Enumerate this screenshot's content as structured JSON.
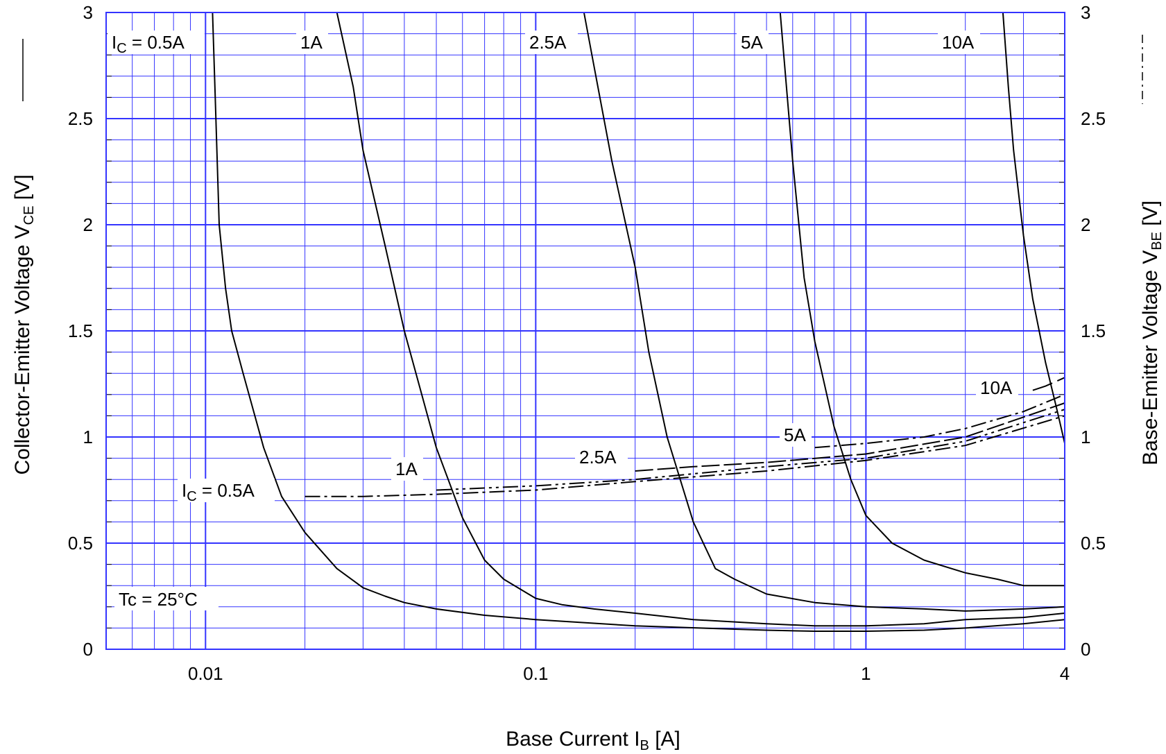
{
  "chart_data": {
    "type": "line",
    "x_scale": "log",
    "xlim": [
      0.005,
      4
    ],
    "ylim": [
      0,
      3
    ],
    "y2lim": [
      0,
      3
    ],
    "grid": true,
    "grid_color": "#3333ff",
    "x_ticks": [
      {
        "value": 0.01,
        "label": "0.01"
      },
      {
        "value": 0.1,
        "label": "0.1"
      },
      {
        "value": 1,
        "label": "1"
      },
      {
        "value": 4,
        "label": "4"
      }
    ],
    "y_ticks": [
      {
        "value": 0,
        "label": "0"
      },
      {
        "value": 0.5,
        "label": "0.5"
      },
      {
        "value": 1,
        "label": "1"
      },
      {
        "value": 1.5,
        "label": "1.5"
      },
      {
        "value": 2,
        "label": "2"
      },
      {
        "value": 2.5,
        "label": "2.5"
      },
      {
        "value": 3,
        "label": "3"
      }
    ],
    "y2_ticks": [
      {
        "value": 0,
        "label": "0"
      },
      {
        "value": 0.5,
        "label": "0.5"
      },
      {
        "value": 1,
        "label": "1"
      },
      {
        "value": 1.5,
        "label": "1.5"
      },
      {
        "value": 2,
        "label": "2"
      },
      {
        "value": 2.5,
        "label": "2.5"
      },
      {
        "value": 3,
        "label": "3"
      }
    ],
    "xlabel": {
      "main": "Base Current  I",
      "sub": "B",
      "unit": "  [A]"
    },
    "ylabel": {
      "main": "Collector-Emitter Voltage  V",
      "sub": "CE",
      "unit": " [V]"
    },
    "y2label": {
      "main": "Base-Emitter Voltage  V",
      "sub": "BE",
      "unit": " [V]"
    },
    "annotation": "Tc = 25°C",
    "vce_series": [
      {
        "label": "I",
        "label_sub": "C",
        "label_rest": " = 0.5A",
        "x": [
          0.0105,
          0.0107,
          0.011,
          0.0115,
          0.012,
          0.013,
          0.015,
          0.017,
          0.02,
          0.025,
          0.03,
          0.035,
          0.04,
          0.05,
          0.07,
          0.1,
          0.2,
          0.5,
          0.7,
          1,
          1.5,
          2,
          3,
          4
        ],
        "y": [
          3.0,
          2.6,
          2.0,
          1.7,
          1.5,
          1.3,
          0.95,
          0.72,
          0.55,
          0.38,
          0.29,
          0.25,
          0.22,
          0.19,
          0.16,
          0.14,
          0.11,
          0.09,
          0.085,
          0.085,
          0.09,
          0.1,
          0.12,
          0.14
        ]
      },
      {
        "label": "1A",
        "x": [
          0.025,
          0.028,
          0.03,
          0.035,
          0.04,
          0.05,
          0.06,
          0.07,
          0.08,
          0.1,
          0.12,
          0.15,
          0.2,
          0.3,
          0.5,
          0.7,
          1,
          1.5,
          2,
          3,
          4
        ],
        "y": [
          3.0,
          2.65,
          2.35,
          1.9,
          1.5,
          0.95,
          0.62,
          0.42,
          0.33,
          0.24,
          0.21,
          0.19,
          0.17,
          0.14,
          0.12,
          0.11,
          0.11,
          0.12,
          0.14,
          0.15,
          0.17
        ]
      },
      {
        "label": "2.5A",
        "x": [
          0.14,
          0.15,
          0.17,
          0.2,
          0.22,
          0.25,
          0.3,
          0.35,
          0.4,
          0.5,
          0.7,
          1,
          1.5,
          2,
          3,
          4
        ],
        "y": [
          3.0,
          2.75,
          2.3,
          1.8,
          1.4,
          1.0,
          0.6,
          0.38,
          0.33,
          0.26,
          0.22,
          0.2,
          0.19,
          0.18,
          0.19,
          0.2
        ]
      },
      {
        "label": "5A",
        "x": [
          0.55,
          0.6,
          0.65,
          0.7,
          0.8,
          0.9,
          1,
          1.2,
          1.5,
          2,
          2.5,
          3,
          4
        ],
        "y": [
          3.0,
          2.3,
          1.75,
          1.45,
          1.05,
          0.8,
          0.63,
          0.5,
          0.42,
          0.36,
          0.33,
          0.3,
          0.3
        ]
      },
      {
        "label": "10A",
        "x": [
          2.6,
          2.7,
          2.8,
          3,
          3.2,
          3.5,
          3.8,
          4
        ],
        "y": [
          3.0,
          2.65,
          2.35,
          1.95,
          1.65,
          1.35,
          1.12,
          0.97
        ]
      }
    ],
    "vbe_series": [
      {
        "label": "I",
        "label_sub": "C",
        "label_rest": " = 0.5A",
        "dash": "22,6,4,6",
        "x": [
          0.02,
          0.03,
          0.05,
          0.1,
          0.2,
          0.5,
          1,
          2,
          4
        ],
        "y": [
          0.72,
          0.72,
          0.73,
          0.75,
          0.79,
          0.84,
          0.89,
          0.96,
          1.1
        ]
      },
      {
        "label": "1A",
        "dash": "22,6,4,6,4,6",
        "x": [
          0.05,
          0.1,
          0.2,
          0.5,
          1,
          2,
          4
        ],
        "y": [
          0.75,
          0.77,
          0.8,
          0.86,
          0.9,
          0.98,
          1.13
        ]
      },
      {
        "label": "2.5A",
        "dash": "26,6",
        "x": [
          0.2,
          0.3,
          0.5,
          1,
          2,
          4
        ],
        "y": [
          0.84,
          0.86,
          0.88,
          0.92,
          1.0,
          1.16
        ]
      },
      {
        "label": "5A",
        "dash": "22,6,4,6",
        "x": [
          0.7,
          1,
          1.5,
          2,
          3,
          4
        ],
        "y": [
          0.95,
          0.97,
          1.0,
          1.04,
          1.12,
          1.2
        ]
      },
      {
        "label": "10A",
        "dash": "30,8",
        "x": [
          3.2,
          3.5,
          4
        ],
        "y": [
          1.22,
          1.24,
          1.28
        ]
      }
    ],
    "legend": {
      "solid_label": "VCE",
      "dashdot_label": "VBE"
    }
  }
}
